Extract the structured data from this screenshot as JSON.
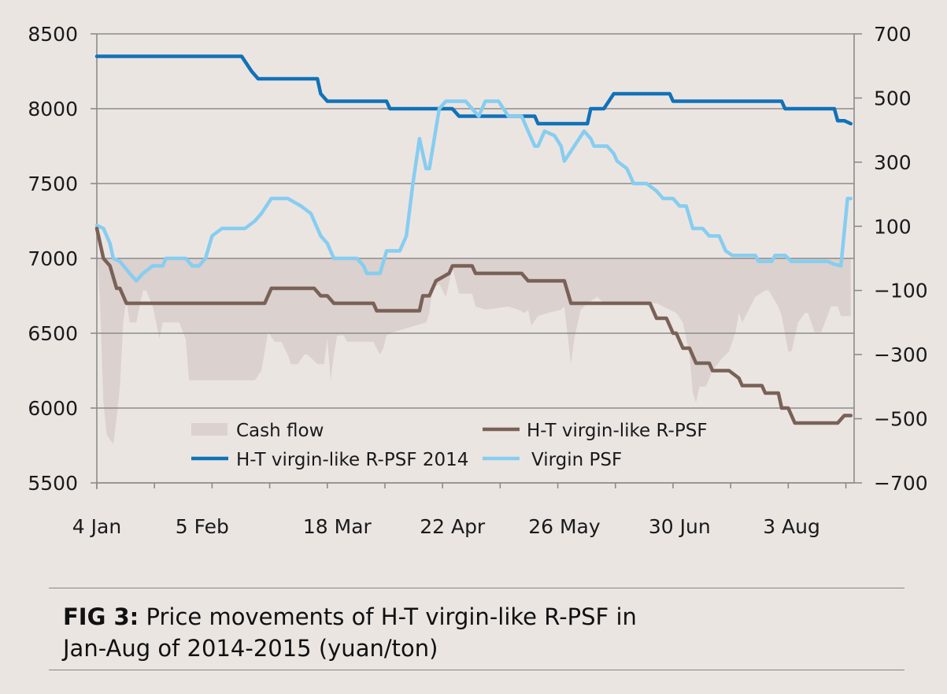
{
  "figure": {
    "label": "FIG 3:",
    "title": "Price movements of H-T virgin-like R-PSF in",
    "title_line2": "Jan-Aug of 2014-2015 (yuan/ton)"
  },
  "chart_data": {
    "type": "line",
    "x_tick_labels": [
      "4 Jan",
      "5 Feb",
      "18 Mar",
      "22 Apr",
      "26 May",
      "30 Jun",
      "3 Aug"
    ],
    "x_tick_days": [
      0,
      32,
      73,
      108,
      142,
      177,
      211
    ],
    "x_range_days": [
      0,
      230
    ],
    "left_axis": {
      "ticks": [
        8500,
        8000,
        7500,
        7000,
        6500,
        6000,
        5500
      ],
      "ylim": [
        5500,
        8500
      ]
    },
    "right_axis": {
      "ticks": [
        700,
        500,
        300,
        100,
        -100,
        -300,
        -500,
        -700
      ],
      "ylim": [
        -700,
        700
      ]
    },
    "grid": true,
    "legend": [
      {
        "key": "cashflow",
        "label": "Cash flow"
      },
      {
        "key": "htrpsf",
        "label": "H-T virgin-like R-PSF"
      },
      {
        "key": "ht2014",
        "label": "H-T virgin-like R-PSF 2014"
      },
      {
        "key": "virgin",
        "label": "Virgin PSF"
      }
    ],
    "colors": {
      "cashflow": "#dbd1ce",
      "htrpsf": "#7a6157",
      "ht2014": "#1172b8",
      "virgin": "#87cdf0",
      "grid": "#8c8b8b",
      "axis": "#8c8b8b"
    },
    "series": [
      {
        "key": "ht2014",
        "axis": "left",
        "points": [
          [
            0,
            8350
          ],
          [
            44,
            8350
          ],
          [
            47,
            8250
          ],
          [
            49,
            8200
          ],
          [
            67,
            8200
          ],
          [
            68,
            8100
          ],
          [
            70,
            8050
          ],
          [
            88,
            8050
          ],
          [
            89,
            8000
          ],
          [
            108,
            8000
          ],
          [
            110,
            7950
          ],
          [
            133,
            7950
          ],
          [
            134,
            7900
          ],
          [
            149,
            7900
          ],
          [
            150,
            8000
          ],
          [
            154,
            8000
          ],
          [
            157,
            8100
          ],
          [
            174,
            8100
          ],
          [
            175,
            8050
          ],
          [
            208,
            8050
          ],
          [
            209,
            8000
          ],
          [
            224,
            8000
          ],
          [
            225,
            7920
          ],
          [
            227,
            7920
          ],
          [
            229,
            7900
          ]
        ]
      },
      {
        "key": "htrpsf",
        "axis": "left",
        "points": [
          [
            0,
            7200
          ],
          [
            2,
            7000
          ],
          [
            4,
            6950
          ],
          [
            6,
            6800
          ],
          [
            7,
            6800
          ],
          [
            9,
            6700
          ],
          [
            51,
            6700
          ],
          [
            53,
            6800
          ],
          [
            66,
            6800
          ],
          [
            68,
            6750
          ],
          [
            70,
            6750
          ],
          [
            72,
            6700
          ],
          [
            84,
            6700
          ],
          [
            85,
            6650
          ],
          [
            98,
            6650
          ],
          [
            99,
            6750
          ],
          [
            101,
            6750
          ],
          [
            103,
            6850
          ],
          [
            107,
            6900
          ],
          [
            108,
            6950
          ],
          [
            114,
            6950
          ],
          [
            115,
            6900
          ],
          [
            129,
            6900
          ],
          [
            131,
            6850
          ],
          [
            142,
            6850
          ],
          [
            144,
            6700
          ],
          [
            168,
            6700
          ],
          [
            170,
            6600
          ],
          [
            173,
            6600
          ],
          [
            175,
            6500
          ],
          [
            176,
            6500
          ],
          [
            178,
            6400
          ],
          [
            180,
            6400
          ],
          [
            182,
            6300
          ],
          [
            186,
            6300
          ],
          [
            187,
            6250
          ],
          [
            192,
            6250
          ],
          [
            195,
            6200
          ],
          [
            196,
            6150
          ],
          [
            202,
            6150
          ],
          [
            203,
            6100
          ],
          [
            207,
            6100
          ],
          [
            208,
            6000
          ],
          [
            210,
            6000
          ],
          [
            212,
            5900
          ],
          [
            225,
            5900
          ],
          [
            227,
            5950
          ],
          [
            229,
            5950
          ]
        ]
      },
      {
        "key": "virgin",
        "axis": "left",
        "points": [
          [
            0,
            7220
          ],
          [
            2,
            7200
          ],
          [
            4,
            7100
          ],
          [
            5,
            7000
          ],
          [
            7,
            6980
          ],
          [
            10,
            6900
          ],
          [
            12,
            6850
          ],
          [
            14,
            6900
          ],
          [
            17,
            6950
          ],
          [
            20,
            6950
          ],
          [
            21,
            7000
          ],
          [
            23,
            7000
          ],
          [
            27,
            7000
          ],
          [
            29,
            6950
          ],
          [
            31,
            6950
          ],
          [
            33,
            7000
          ],
          [
            35,
            7150
          ],
          [
            38,
            7200
          ],
          [
            45,
            7200
          ],
          [
            48,
            7250
          ],
          [
            50,
            7300
          ],
          [
            53,
            7400
          ],
          [
            58,
            7400
          ],
          [
            62,
            7350
          ],
          [
            65,
            7300
          ],
          [
            68,
            7150
          ],
          [
            70,
            7100
          ],
          [
            72,
            7000
          ],
          [
            79,
            7000
          ],
          [
            81,
            6950
          ],
          [
            82,
            6900
          ],
          [
            86,
            6900
          ],
          [
            88,
            7050
          ],
          [
            92,
            7050
          ],
          [
            94,
            7150
          ],
          [
            96,
            7500
          ],
          [
            98,
            7800
          ],
          [
            100,
            7600
          ],
          [
            101,
            7600
          ],
          [
            104,
            8000
          ],
          [
            106,
            8050
          ],
          [
            112,
            8050
          ],
          [
            114,
            8000
          ],
          [
            116,
            7950
          ],
          [
            118,
            8050
          ],
          [
            122,
            8050
          ],
          [
            125,
            7950
          ],
          [
            129,
            7950
          ],
          [
            131,
            7850
          ],
          [
            133,
            7750
          ],
          [
            134,
            7750
          ],
          [
            136,
            7850
          ],
          [
            139,
            7820
          ],
          [
            141,
            7750
          ],
          [
            142,
            7650
          ],
          [
            145,
            7750
          ],
          [
            148,
            7850
          ],
          [
            150,
            7800
          ],
          [
            151,
            7750
          ],
          [
            155,
            7750
          ],
          [
            157,
            7700
          ],
          [
            158,
            7650
          ],
          [
            161,
            7600
          ],
          [
            163,
            7500
          ],
          [
            167,
            7500
          ],
          [
            170,
            7450
          ],
          [
            172,
            7400
          ],
          [
            175,
            7400
          ],
          [
            177,
            7350
          ],
          [
            179,
            7350
          ],
          [
            181,
            7200
          ],
          [
            184,
            7200
          ],
          [
            186,
            7150
          ],
          [
            189,
            7150
          ],
          [
            191,
            7050
          ],
          [
            193,
            7020
          ],
          [
            200,
            7020
          ],
          [
            201,
            6980
          ],
          [
            205,
            6980
          ],
          [
            206,
            7020
          ],
          [
            209,
            7020
          ],
          [
            211,
            6980
          ],
          [
            215,
            6980
          ],
          [
            222,
            6980
          ],
          [
            224,
            6960
          ],
          [
            226,
            6950
          ],
          [
            228,
            7400
          ],
          [
            229,
            7400
          ]
        ]
      },
      {
        "key": "cashflow",
        "axis": "right",
        "points": [
          [
            0,
            50
          ],
          [
            1,
            -150
          ],
          [
            2,
            -450
          ],
          [
            3,
            -550
          ],
          [
            5,
            -580
          ],
          [
            6,
            -500
          ],
          [
            7,
            -400
          ],
          [
            8,
            -200
          ],
          [
            9,
            -130
          ],
          [
            10,
            -200
          ],
          [
            12,
            -200
          ],
          [
            14,
            -100
          ],
          [
            15,
            -100
          ],
          [
            17,
            -150
          ],
          [
            18,
            -200
          ],
          [
            19,
            -250
          ],
          [
            20,
            -200
          ],
          [
            23,
            -200
          ],
          [
            25,
            -200
          ],
          [
            27,
            -250
          ],
          [
            28,
            -380
          ],
          [
            34,
            -380
          ],
          [
            48,
            -380
          ],
          [
            50,
            -350
          ],
          [
            52,
            -230
          ],
          [
            54,
            -260
          ],
          [
            56,
            -260
          ],
          [
            58,
            -300
          ],
          [
            59,
            -330
          ],
          [
            61,
            -330
          ],
          [
            63,
            -300
          ],
          [
            64,
            -300
          ],
          [
            66,
            -320
          ],
          [
            67,
            -330
          ],
          [
            69,
            -330
          ],
          [
            70,
            -250
          ],
          [
            71,
            -380
          ],
          [
            72,
            -300
          ],
          [
            73,
            -240
          ],
          [
            75,
            -240
          ],
          [
            76,
            -260
          ],
          [
            84,
            -260
          ],
          [
            85,
            -280
          ],
          [
            86,
            -300
          ],
          [
            87,
            -280
          ],
          [
            88,
            -240
          ],
          [
            90,
            -230
          ],
          [
            100,
            -200
          ],
          [
            101,
            -170
          ],
          [
            102,
            -90
          ],
          [
            104,
            -80
          ],
          [
            106,
            -120
          ],
          [
            108,
            -30
          ],
          [
            110,
            -110
          ],
          [
            114,
            -110
          ],
          [
            115,
            -150
          ],
          [
            118,
            -160
          ],
          [
            125,
            -150
          ],
          [
            128,
            -160
          ],
          [
            130,
            -170
          ],
          [
            131,
            -160
          ],
          [
            132,
            -210
          ],
          [
            134,
            -180
          ],
          [
            137,
            -170
          ],
          [
            141,
            -160
          ],
          [
            142,
            -150
          ],
          [
            144,
            -330
          ],
          [
            145,
            -250
          ],
          [
            147,
            -160
          ],
          [
            149,
            -140
          ],
          [
            152,
            -120
          ],
          [
            154,
            -140
          ],
          [
            156,
            -140
          ],
          [
            170,
            -140
          ],
          [
            172,
            -150
          ],
          [
            176,
            -170
          ],
          [
            178,
            -200
          ],
          [
            180,
            -300
          ],
          [
            181,
            -420
          ],
          [
            182,
            -450
          ],
          [
            183,
            -400
          ],
          [
            185,
            -400
          ],
          [
            187,
            -350
          ],
          [
            190,
            -310
          ],
          [
            192,
            -290
          ],
          [
            194,
            -230
          ],
          [
            195,
            -170
          ],
          [
            196,
            -200
          ],
          [
            197,
            -180
          ],
          [
            200,
            -120
          ],
          [
            203,
            -100
          ],
          [
            204,
            -100
          ],
          [
            207,
            -150
          ],
          [
            208,
            -180
          ],
          [
            210,
            -290
          ],
          [
            211,
            -290
          ],
          [
            213,
            -200
          ],
          [
            215,
            -170
          ],
          [
            216,
            -170
          ],
          [
            218,
            -230
          ],
          [
            220,
            -230
          ],
          [
            223,
            -150
          ],
          [
            225,
            -150
          ],
          [
            226,
            -180
          ],
          [
            229,
            -180
          ]
        ]
      }
    ]
  }
}
